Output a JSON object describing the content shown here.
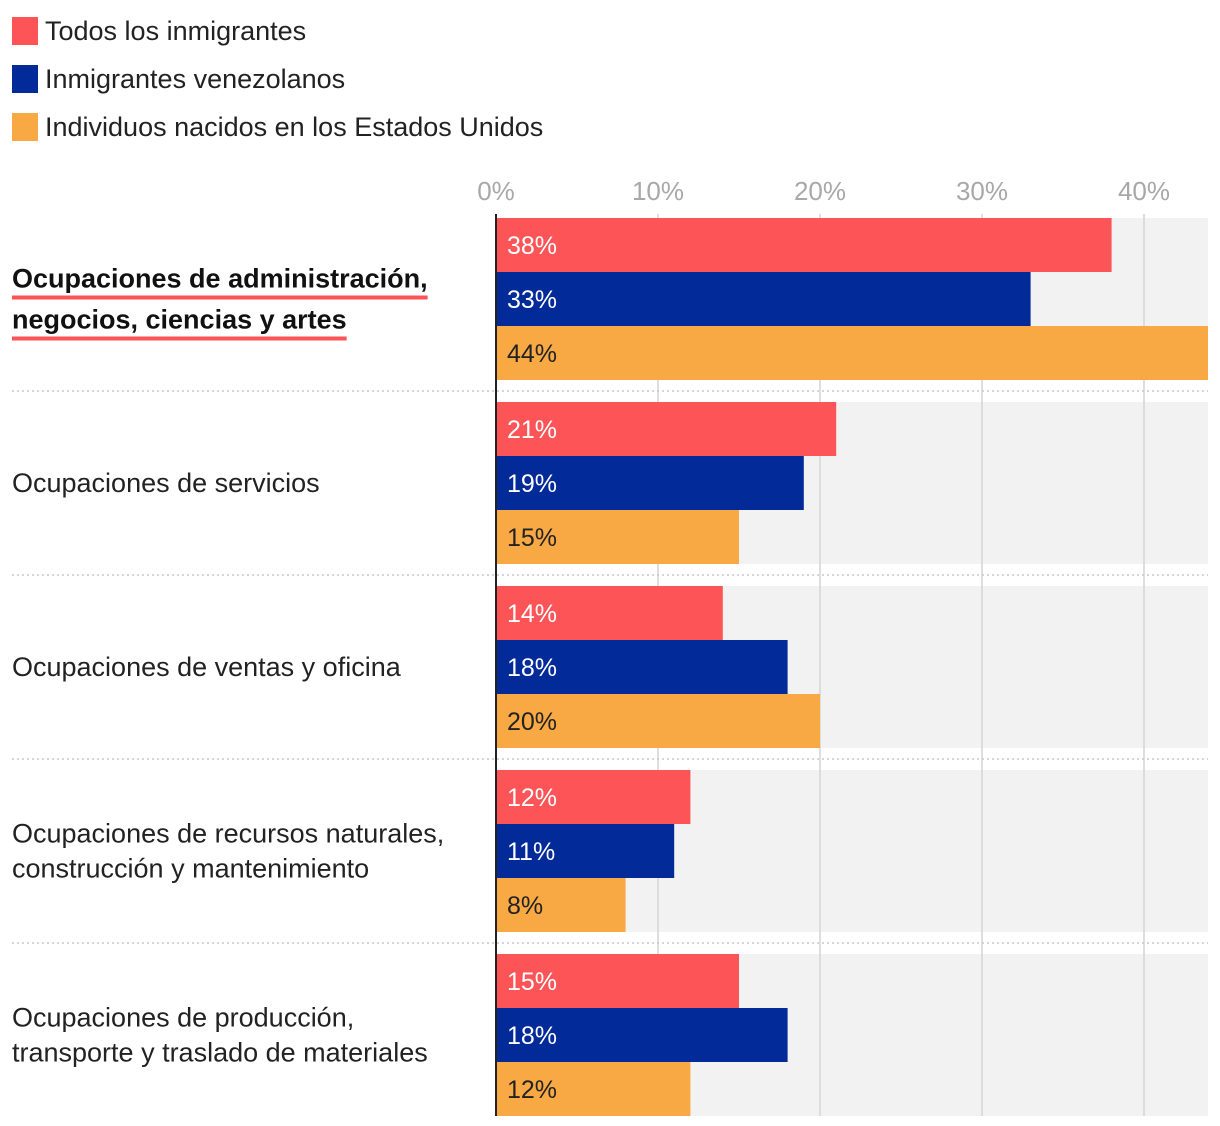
{
  "chart_data": {
    "type": "bar",
    "orientation": "horizontal",
    "title": "",
    "xlabel": "",
    "ylabel": "",
    "xlim": [
      0,
      44
    ],
    "ticks": [
      0,
      10,
      20,
      30,
      40
    ],
    "tick_labels": [
      "0%",
      "10%",
      "20%",
      "30%",
      "40%"
    ],
    "legend_position": "top-left",
    "highlighted_category": 0,
    "categories": [
      [
        "Ocupaciones de administración,",
        "negocios, ciencias y artes"
      ],
      [
        "Ocupaciones de servicios"
      ],
      [
        "Ocupaciones de ventas y oficina"
      ],
      [
        "Ocupaciones de recursos naturales,",
        "construcción y mantenimiento"
      ],
      [
        "Ocupaciones de producción,",
        "transporte y traslado de materiales"
      ]
    ],
    "series": [
      {
        "name": "Todos los inmigrantes",
        "color": "#fd5557",
        "label_color": "#ffffff",
        "values": [
          38,
          21,
          14,
          12,
          15
        ],
        "labels": [
          "38%",
          "21%",
          "14%",
          "12%",
          "15%"
        ]
      },
      {
        "name": "Inmigrantes venezolanos",
        "color": "#022a99",
        "label_color": "#ffffff",
        "values": [
          33,
          19,
          18,
          11,
          18
        ],
        "labels": [
          "33%",
          "19%",
          "18%",
          "11%",
          "18%"
        ]
      },
      {
        "name": "Individuos nacidos en los Estados Unidos",
        "color": "#f8a944",
        "label_color": "#222222",
        "values": [
          44,
          15,
          20,
          8,
          12
        ],
        "labels": [
          "44%",
          "15%",
          "20%",
          "8%",
          "12%"
        ]
      }
    ]
  },
  "colors": {
    "panel_background": "#f2f2f2",
    "gridline": "#d4d4d4",
    "axis_line": "#222222",
    "separator": "#c8c8c8",
    "highlight_underline": "#fd5557"
  }
}
